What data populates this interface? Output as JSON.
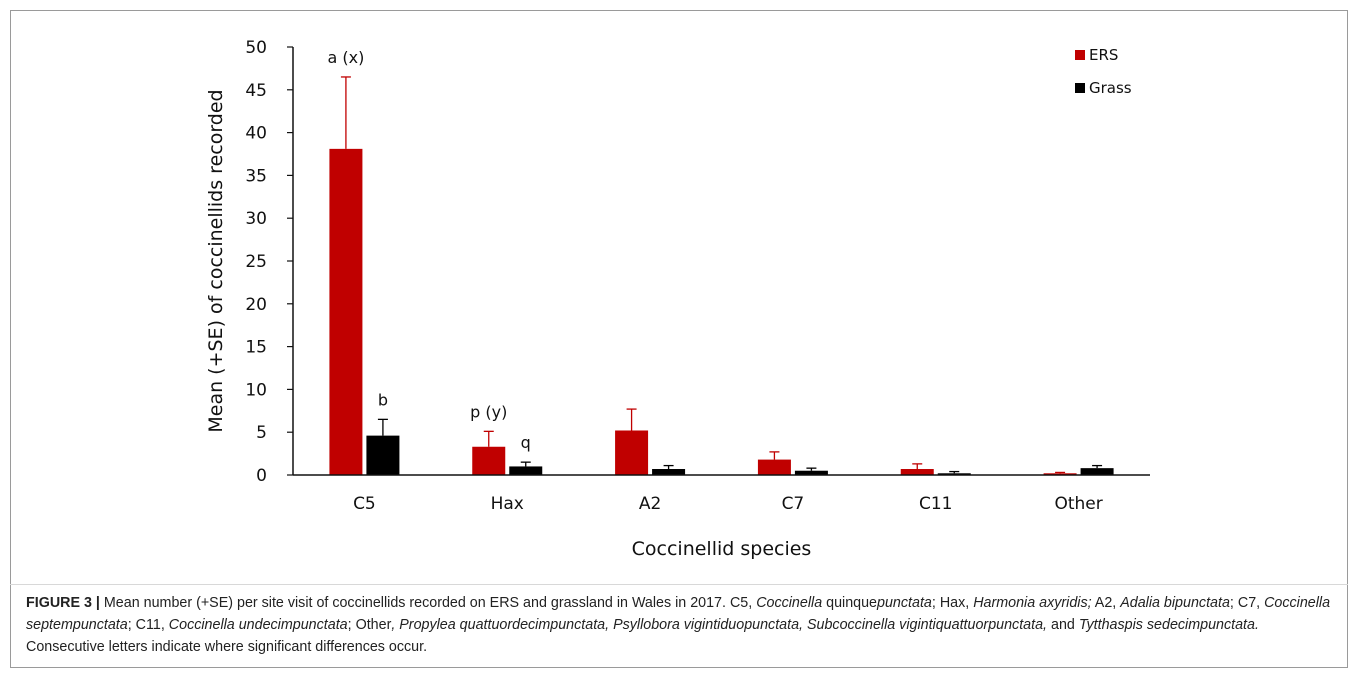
{
  "colors": {
    "ERS": "#c00000",
    "Grass": "#000000",
    "error_bar_ers": "#c00000",
    "error_bar_grass": "#000000"
  },
  "chart_data": {
    "type": "bar",
    "title": "",
    "xlabel": "Coccinellid species",
    "ylabel": "Mean (+SE) of coccinellids recorded",
    "ylim": [
      0,
      50
    ],
    "yticks": [
      "0",
      "5",
      "10",
      "15",
      "20",
      "25",
      "30",
      "35",
      "40",
      "45",
      "50"
    ],
    "categories": [
      "C5",
      "Hax",
      "A2",
      "C7",
      "C11",
      "Other"
    ],
    "series": [
      {
        "name": "ERS",
        "values": [
          38.1,
          3.3,
          5.2,
          1.8,
          0.7,
          0.2
        ],
        "se": [
          8.4,
          1.8,
          2.5,
          0.9,
          0.6,
          0.1
        ]
      },
      {
        "name": "Grass",
        "values": [
          4.6,
          1.0,
          0.7,
          0.5,
          0.2,
          0.8
        ],
        "se": [
          1.9,
          0.5,
          0.4,
          0.3,
          0.2,
          0.3
        ]
      }
    ],
    "annotations": [
      {
        "text": "a (x)",
        "series": 0,
        "category": 0
      },
      {
        "text": "b",
        "series": 1,
        "category": 0
      },
      {
        "text": "p (y)",
        "series": 0,
        "category": 1
      },
      {
        "text": "q",
        "series": 1,
        "category": 1
      }
    ],
    "grid": false,
    "legend_position": "top-right"
  },
  "caption": {
    "label": "FIGURE 3 |",
    "segments": [
      {
        "text": " Mean number (+SE) per site visit of coccinellids recorded on ERS and grassland in Wales in 2017. C5, ",
        "italic": false
      },
      {
        "text": "Coccinella",
        "italic": true
      },
      {
        "text": " quinque",
        "italic": false
      },
      {
        "text": "punctata",
        "italic": true
      },
      {
        "text": "; Hax, ",
        "italic": false
      },
      {
        "text": "Harmonia axyridis;",
        "italic": true
      },
      {
        "text": " A2, ",
        "italic": false
      },
      {
        "text": "Adalia bipunctata",
        "italic": true
      },
      {
        "text": "; C7, ",
        "italic": false
      },
      {
        "text": "Coccinella septempunctata",
        "italic": true
      },
      {
        "text": "; C11, ",
        "italic": false
      },
      {
        "text": "Coccinella undecimpunctata",
        "italic": true
      },
      {
        "text": "; Other",
        "italic": false
      },
      {
        "text": ", Propylea quattuordecimpunctata, Psyllobora vigintiduopunctata, Subcoccinella vigintiquattuorpunctata,",
        "italic": true
      },
      {
        "text": " and ",
        "italic": false
      },
      {
        "text": "Tytthaspis sedecimpunctata.",
        "italic": true
      },
      {
        "text": " Consecutive letters indicate where significant differences occur.",
        "italic": false
      }
    ]
  }
}
